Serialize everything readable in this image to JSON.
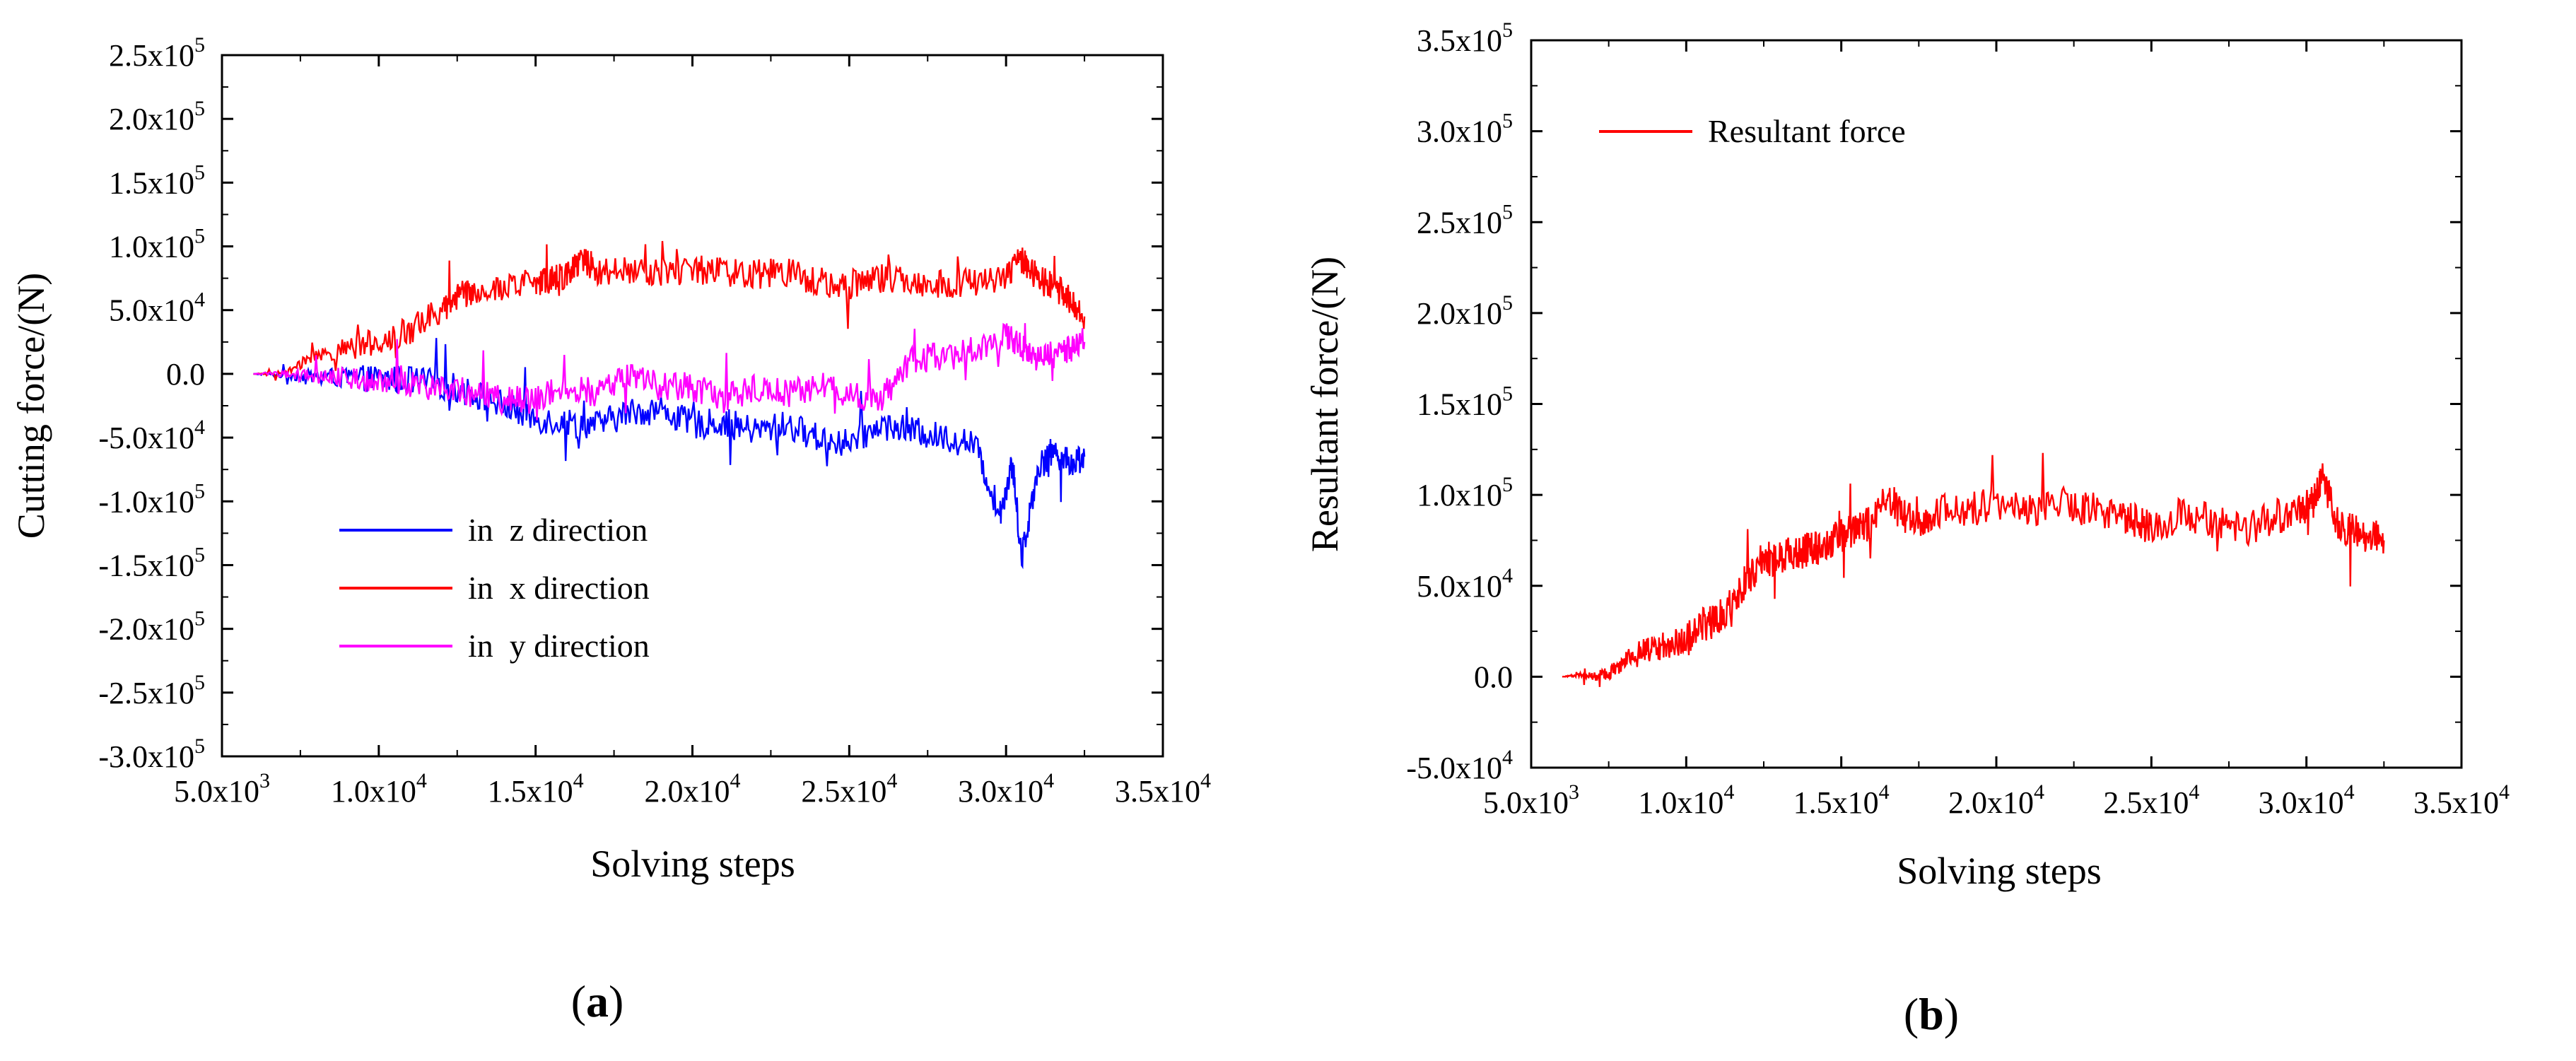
{
  "chart_data": [
    {
      "type": "line",
      "panel": "a",
      "caption_letter": "a",
      "title": "",
      "xlabel": "Solving steps",
      "ylabel": "Cutting force/(N)",
      "xlim": [
        5000,
        35000
      ],
      "ylim": [
        -300000,
        250000
      ],
      "grid": false,
      "legend_placement": "center-left",
      "x_ticks": [
        {
          "value": 5000,
          "mant": "5.0x10",
          "exp": "3"
        },
        {
          "value": 10000,
          "mant": "1.0x10",
          "exp": "4"
        },
        {
          "value": 15000,
          "mant": "1.5x10",
          "exp": "4"
        },
        {
          "value": 20000,
          "mant": "2.0x10",
          "exp": "4"
        },
        {
          "value": 25000,
          "mant": "2.5x10",
          "exp": "4"
        },
        {
          "value": 30000,
          "mant": "3.0x10",
          "exp": "4"
        },
        {
          "value": 35000,
          "mant": "3.5x10",
          "exp": "4"
        }
      ],
      "y_ticks": [
        {
          "value": 250000,
          "mant": "2.5x10",
          "exp": "5"
        },
        {
          "value": 200000,
          "mant": "2.0x10",
          "exp": "5"
        },
        {
          "value": 150000,
          "mant": "1.5x10",
          "exp": "5"
        },
        {
          "value": 100000,
          "mant": "1.0x10",
          "exp": "5"
        },
        {
          "value": 50000,
          "mant": "5.0x10",
          "exp": "4"
        },
        {
          "value": 0,
          "mant": "0.0",
          "exp": ""
        },
        {
          "value": -50000,
          "mant": "-5.0x10",
          "exp": "4"
        },
        {
          "value": -100000,
          "mant": "-1.0x10",
          "exp": "5"
        },
        {
          "value": -150000,
          "mant": "-1.5x10",
          "exp": "5"
        },
        {
          "value": -200000,
          "mant": "-2.0x10",
          "exp": "5"
        },
        {
          "value": -250000,
          "mant": "-2.5x10",
          "exp": "5"
        },
        {
          "value": -300000,
          "mant": "-3.0x10",
          "exp": "5"
        }
      ],
      "series": [
        {
          "name": "in  z direction",
          "color": "#0000ff",
          "x": [
            6000,
            7000,
            8000,
            9000,
            10000,
            11000,
            12000,
            13000,
            14000,
            15000,
            16000,
            17000,
            18000,
            19000,
            20000,
            21000,
            22000,
            23000,
            24000,
            25000,
            26000,
            27000,
            28000,
            29000,
            29800,
            30200,
            30500,
            31000,
            31500,
            32000,
            32500
          ],
          "values": [
            0,
            -1000,
            -2000,
            -3000,
            -4000,
            -5000,
            -8000,
            -15000,
            -25000,
            -35000,
            -38000,
            -40000,
            -30000,
            -28000,
            -40000,
            -38000,
            -45000,
            -40000,
            -50000,
            -55000,
            -40000,
            -45000,
            -50000,
            -55000,
            -110000,
            -70000,
            -145000,
            -75000,
            -60000,
            -70000,
            -65000
          ]
        },
        {
          "name": "in  x direction",
          "color": "#ff0000",
          "x": [
            6000,
            7000,
            8000,
            9000,
            10000,
            11000,
            12000,
            12500,
            13000,
            14000,
            15000,
            15500,
            16000,
            16500,
            17000,
            18000,
            19000,
            20000,
            21000,
            22000,
            23000,
            24000,
            25000,
            26000,
            27000,
            28000,
            29000,
            30000,
            30500,
            31000,
            31500,
            32000,
            32500
          ],
          "values": [
            0,
            0,
            15000,
            20000,
            25000,
            35000,
            50000,
            62000,
            65000,
            68000,
            72000,
            75000,
            78000,
            92000,
            80000,
            82000,
            80000,
            82000,
            80000,
            78000,
            80000,
            72000,
            70000,
            75000,
            72000,
            70000,
            72000,
            75000,
            90000,
            75000,
            68000,
            60000,
            45000
          ]
        },
        {
          "name": "in  y direction",
          "color": "#ff00ff",
          "x": [
            6000,
            7000,
            8000,
            9000,
            10000,
            11000,
            12000,
            13000,
            14000,
            15000,
            16000,
            17000,
            18000,
            19000,
            20000,
            21000,
            22000,
            23000,
            24000,
            25000,
            26000,
            27000,
            28000,
            29000,
            30000,
            30500,
            31000,
            31500,
            32000,
            32500
          ],
          "values": [
            0,
            0,
            -2000,
            -3000,
            -5000,
            -8000,
            -10000,
            -15000,
            -20000,
            -20000,
            -10000,
            -15000,
            0,
            -10000,
            -10000,
            -20000,
            -10000,
            -15000,
            -10000,
            -15000,
            -20000,
            10000,
            15000,
            20000,
            30000,
            20000,
            10000,
            15000,
            20000,
            25000
          ]
        }
      ]
    },
    {
      "type": "line",
      "panel": "b",
      "caption_letter": "b",
      "title": "",
      "xlabel": "Solving steps",
      "ylabel": "Resultant force/(N)",
      "xlim": [
        5000,
        35000
      ],
      "ylim": [
        -50000,
        350000
      ],
      "grid": false,
      "legend_placement": "top-left",
      "x_ticks": [
        {
          "value": 5000,
          "mant": "5.0x10",
          "exp": "3"
        },
        {
          "value": 10000,
          "mant": "1.0x10",
          "exp": "4"
        },
        {
          "value": 15000,
          "mant": "1.5x10",
          "exp": "4"
        },
        {
          "value": 20000,
          "mant": "2.0x10",
          "exp": "4"
        },
        {
          "value": 25000,
          "mant": "2.5x10",
          "exp": "4"
        },
        {
          "value": 30000,
          "mant": "3.0x10",
          "exp": "4"
        },
        {
          "value": 35000,
          "mant": "3.5x10",
          "exp": "4"
        }
      ],
      "y_ticks": [
        {
          "value": 350000,
          "mant": "3.5x10",
          "exp": "5"
        },
        {
          "value": 300000,
          "mant": "3.0x10",
          "exp": "5"
        },
        {
          "value": 250000,
          "mant": "2.5x10",
          "exp": "5"
        },
        {
          "value": 200000,
          "mant": "2.0x10",
          "exp": "5"
        },
        {
          "value": 150000,
          "mant": "1.5x10",
          "exp": "5"
        },
        {
          "value": 100000,
          "mant": "1.0x10",
          "exp": "5"
        },
        {
          "value": 50000,
          "mant": "5.0x10",
          "exp": "4"
        },
        {
          "value": 0,
          "mant": "0.0",
          "exp": ""
        },
        {
          "value": -50000,
          "mant": "-5.0x10",
          "exp": "4"
        }
      ],
      "series": [
        {
          "name": "Resultant force",
          "color": "#ff0000",
          "x": [
            6000,
            6500,
            7000,
            7500,
            8000,
            8500,
            9000,
            9500,
            10000,
            10500,
            11000,
            11500,
            12000,
            12500,
            13000,
            13500,
            14000,
            14500,
            15000,
            15500,
            16000,
            16500,
            17000,
            17500,
            18000,
            19000,
            20000,
            21000,
            22000,
            23000,
            24000,
            24500,
            25000,
            26000,
            27000,
            28000,
            29000,
            29800,
            30200,
            30500,
            31000,
            31500,
            32000,
            32500
          ],
          "values": [
            0,
            1000,
            0,
            2000,
            8000,
            15000,
            15000,
            18000,
            20000,
            28000,
            32000,
            42000,
            55000,
            65000,
            65000,
            68000,
            70000,
            72000,
            78000,
            80000,
            85000,
            100000,
            88000,
            85000,
            90000,
            92000,
            95000,
            92000,
            95000,
            92000,
            90000,
            85000,
            82000,
            90000,
            85000,
            80000,
            88000,
            92000,
            95000,
            110000,
            85000,
            80000,
            78000,
            75000
          ]
        }
      ]
    }
  ]
}
